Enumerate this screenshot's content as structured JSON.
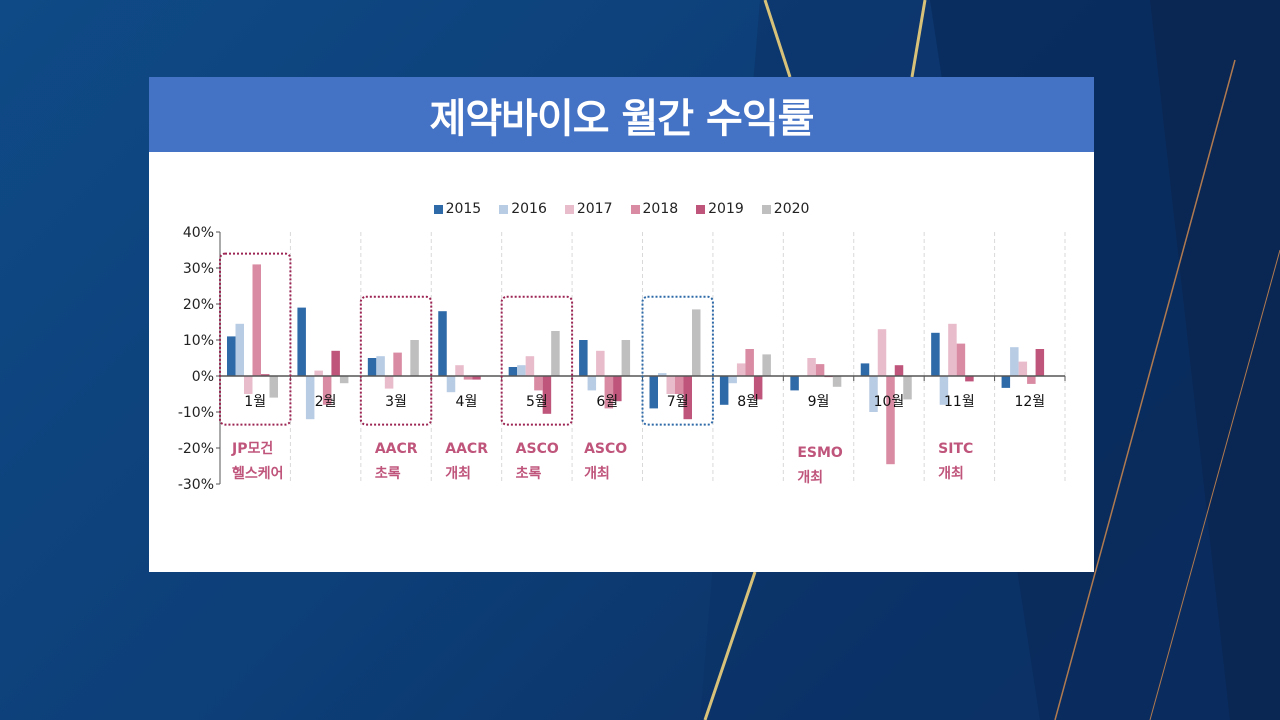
{
  "title": "제약바이오 월간 수익률",
  "chart_data": {
    "type": "bar",
    "title": "제약바이오 월간 수익률",
    "categories": [
      "1월",
      "2월",
      "3월",
      "4월",
      "5월",
      "6월",
      "7월",
      "8월",
      "9월",
      "10월",
      "11월",
      "12월"
    ],
    "ylim": [
      -30,
      40
    ],
    "yticks": [
      40,
      30,
      20,
      10,
      0,
      -10,
      -20,
      -30
    ],
    "ytick_labels": [
      "40%",
      "30%",
      "20%",
      "10%",
      "0%",
      "-10%",
      "-20%",
      "-30%"
    ],
    "legend_position": "top-center",
    "series": [
      {
        "name": "2015",
        "color": "#2e6aa8",
        "values": [
          11,
          19,
          5,
          18,
          2.5,
          10,
          -9,
          -8,
          -4,
          3.5,
          12,
          -3.3
        ]
      },
      {
        "name": "2016",
        "color": "#b8cce4",
        "values": [
          14.5,
          -12,
          5.5,
          -4.5,
          3,
          -4,
          0.8,
          -2,
          0,
          -10,
          -8,
          8
        ]
      },
      {
        "name": "2017",
        "color": "#e8bccb",
        "values": [
          -5,
          1.5,
          -3.5,
          3,
          5.5,
          7,
          -5,
          3.5,
          5,
          13,
          14.5,
          4
        ]
      },
      {
        "name": "2018",
        "color": "#d98ba3",
        "values": [
          31,
          -8,
          6.5,
          -1,
          -4,
          -9,
          -5,
          7.5,
          3.3,
          -24.5,
          9,
          -2.2
        ]
      },
      {
        "name": "2019",
        "color": "#c0557c",
        "values": [
          0.5,
          7,
          0,
          -1,
          -10.5,
          -7,
          -12,
          -6.5,
          -0.3,
          3,
          -1.5,
          7.5
        ]
      },
      {
        "name": "2020",
        "color": "#bfbfbf",
        "values": [
          -6,
          -2,
          10,
          0,
          12.5,
          10,
          18.5,
          6,
          -3,
          -6.5,
          0,
          0
        ]
      }
    ],
    "annotations": [
      {
        "month_index": 0,
        "lines": [
          "JP모건",
          "헬스케어"
        ],
        "highlight": "red"
      },
      {
        "month_index": 2,
        "lines": [
          "AACR",
          "초록"
        ],
        "highlight": "red"
      },
      {
        "month_index": 3,
        "lines": [
          "AACR",
          "개최"
        ]
      },
      {
        "month_index": 4,
        "lines": [
          "ASCO",
          "초록"
        ],
        "highlight": "red"
      },
      {
        "month_index": 5,
        "lines": [
          "ASCO",
          "개최"
        ]
      },
      {
        "month_index": 6,
        "lines": [],
        "highlight": "blue"
      },
      {
        "month_index": 8,
        "lines": [
          "ESMO",
          "개최"
        ]
      },
      {
        "month_index": 10,
        "lines": [
          "SITC",
          "개최"
        ]
      }
    ]
  }
}
